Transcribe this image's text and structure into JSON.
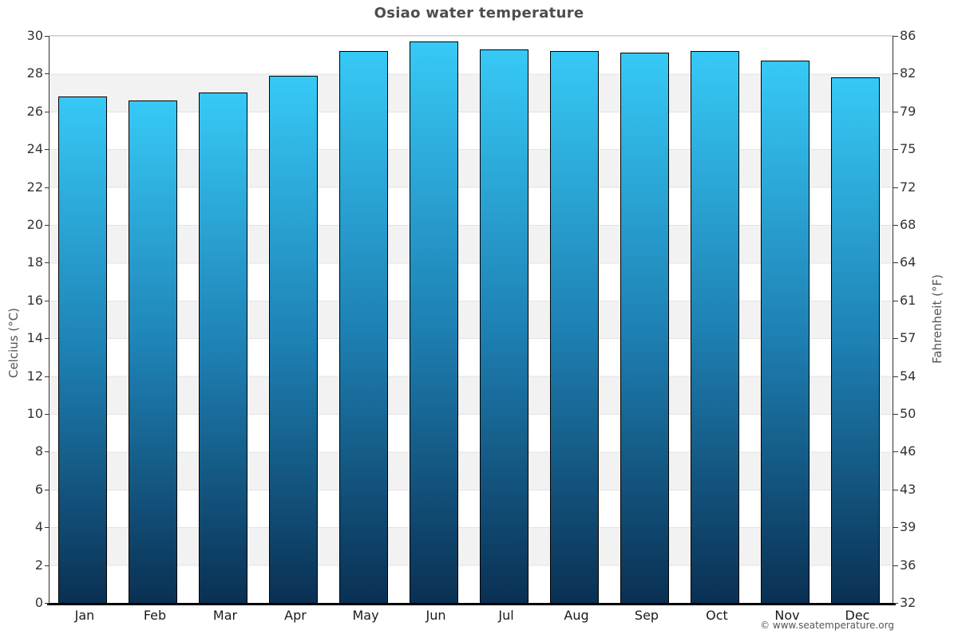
{
  "title": "Osiao water temperature",
  "chart_data": {
    "type": "bar",
    "title": "Osiao water temperature",
    "categories": [
      "Jan",
      "Feb",
      "Mar",
      "Apr",
      "May",
      "Jun",
      "Jul",
      "Aug",
      "Sep",
      "Oct",
      "Nov",
      "Dec"
    ],
    "values": [
      26.8,
      26.6,
      27.0,
      27.9,
      29.2,
      29.7,
      29.3,
      29.2,
      29.1,
      29.2,
      28.7,
      27.8
    ],
    "unit": "°C",
    "xlabel": "",
    "ylabel_left": "Celcius (°C)",
    "ylabel_right": "Fahrenheit (°F)",
    "ylim": [
      0,
      30
    ],
    "yticks_celsius": [
      0,
      2,
      4,
      6,
      8,
      10,
      12,
      14,
      16,
      18,
      20,
      22,
      24,
      26,
      28,
      30
    ],
    "yticks_fahrenheit": [
      32,
      36,
      39,
      43,
      46,
      50,
      54,
      57,
      61,
      64,
      68,
      72,
      75,
      79,
      82,
      86
    ],
    "grid": "alternating horizontal bands every 2 units, light gridline at each tick",
    "legend_position": "none"
  },
  "colors": {
    "bar_gradient_top": "#37c9f6",
    "bar_gradient_mid": "#1e81b4",
    "bar_gradient_bottom": "#0a3053",
    "bar_border": "#000000",
    "band_gray": "#f2f2f2",
    "band_white": "#ffffff",
    "gridline": "#e3e3e3",
    "title_text": "#4d4d4d",
    "tick_text": "#333333",
    "axis_line": "#333333",
    "bottom_axis_line": "#000000"
  },
  "footer": {
    "copyright": "© www.seatemperature.org"
  }
}
